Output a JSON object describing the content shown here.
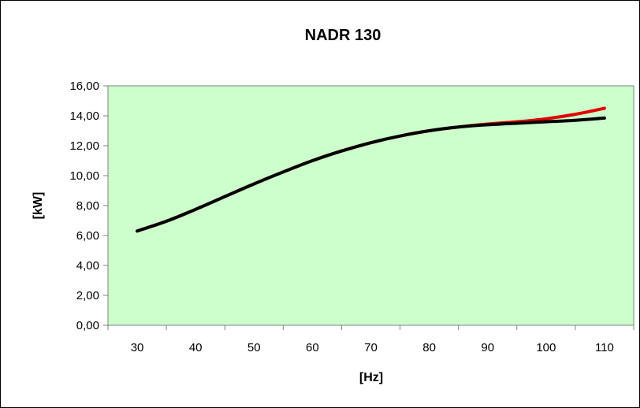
{
  "chart_data": {
    "type": "line",
    "title": "NADR 130",
    "xlabel": "[Hz]",
    "ylabel": "[kW]",
    "x_ticks": [
      "30",
      "40",
      "50",
      "60",
      "70",
      "80",
      "90",
      "100",
      "110"
    ],
    "y_ticks": [
      "0,00",
      "2,00",
      "4,00",
      "6,00",
      "8,00",
      "10,00",
      "12,00",
      "14,00",
      "16,00"
    ],
    "xlim": [
      25,
      115
    ],
    "ylim": [
      0,
      16
    ],
    "grid": false,
    "legend": "none",
    "plot_background": "#ccffcc",
    "series": [
      {
        "color": "#e00000",
        "x": [
          30,
          35,
          40,
          45,
          50,
          55,
          60,
          65,
          70,
          75,
          80,
          85,
          90,
          95,
          100,
          105,
          110
        ],
        "y": [
          6.3,
          6.95,
          7.75,
          8.6,
          9.45,
          10.25,
          11.0,
          11.65,
          12.2,
          12.65,
          13.0,
          13.25,
          13.45,
          13.6,
          13.8,
          14.1,
          14.5
        ]
      },
      {
        "color": "#000000",
        "x": [
          30,
          35,
          40,
          45,
          50,
          55,
          60,
          65,
          70,
          75,
          80,
          85,
          90,
          95,
          100,
          105,
          110
        ],
        "y": [
          6.3,
          6.95,
          7.75,
          8.6,
          9.45,
          10.25,
          11.0,
          11.65,
          12.2,
          12.65,
          13.0,
          13.25,
          13.4,
          13.5,
          13.6,
          13.7,
          13.85
        ]
      }
    ]
  }
}
